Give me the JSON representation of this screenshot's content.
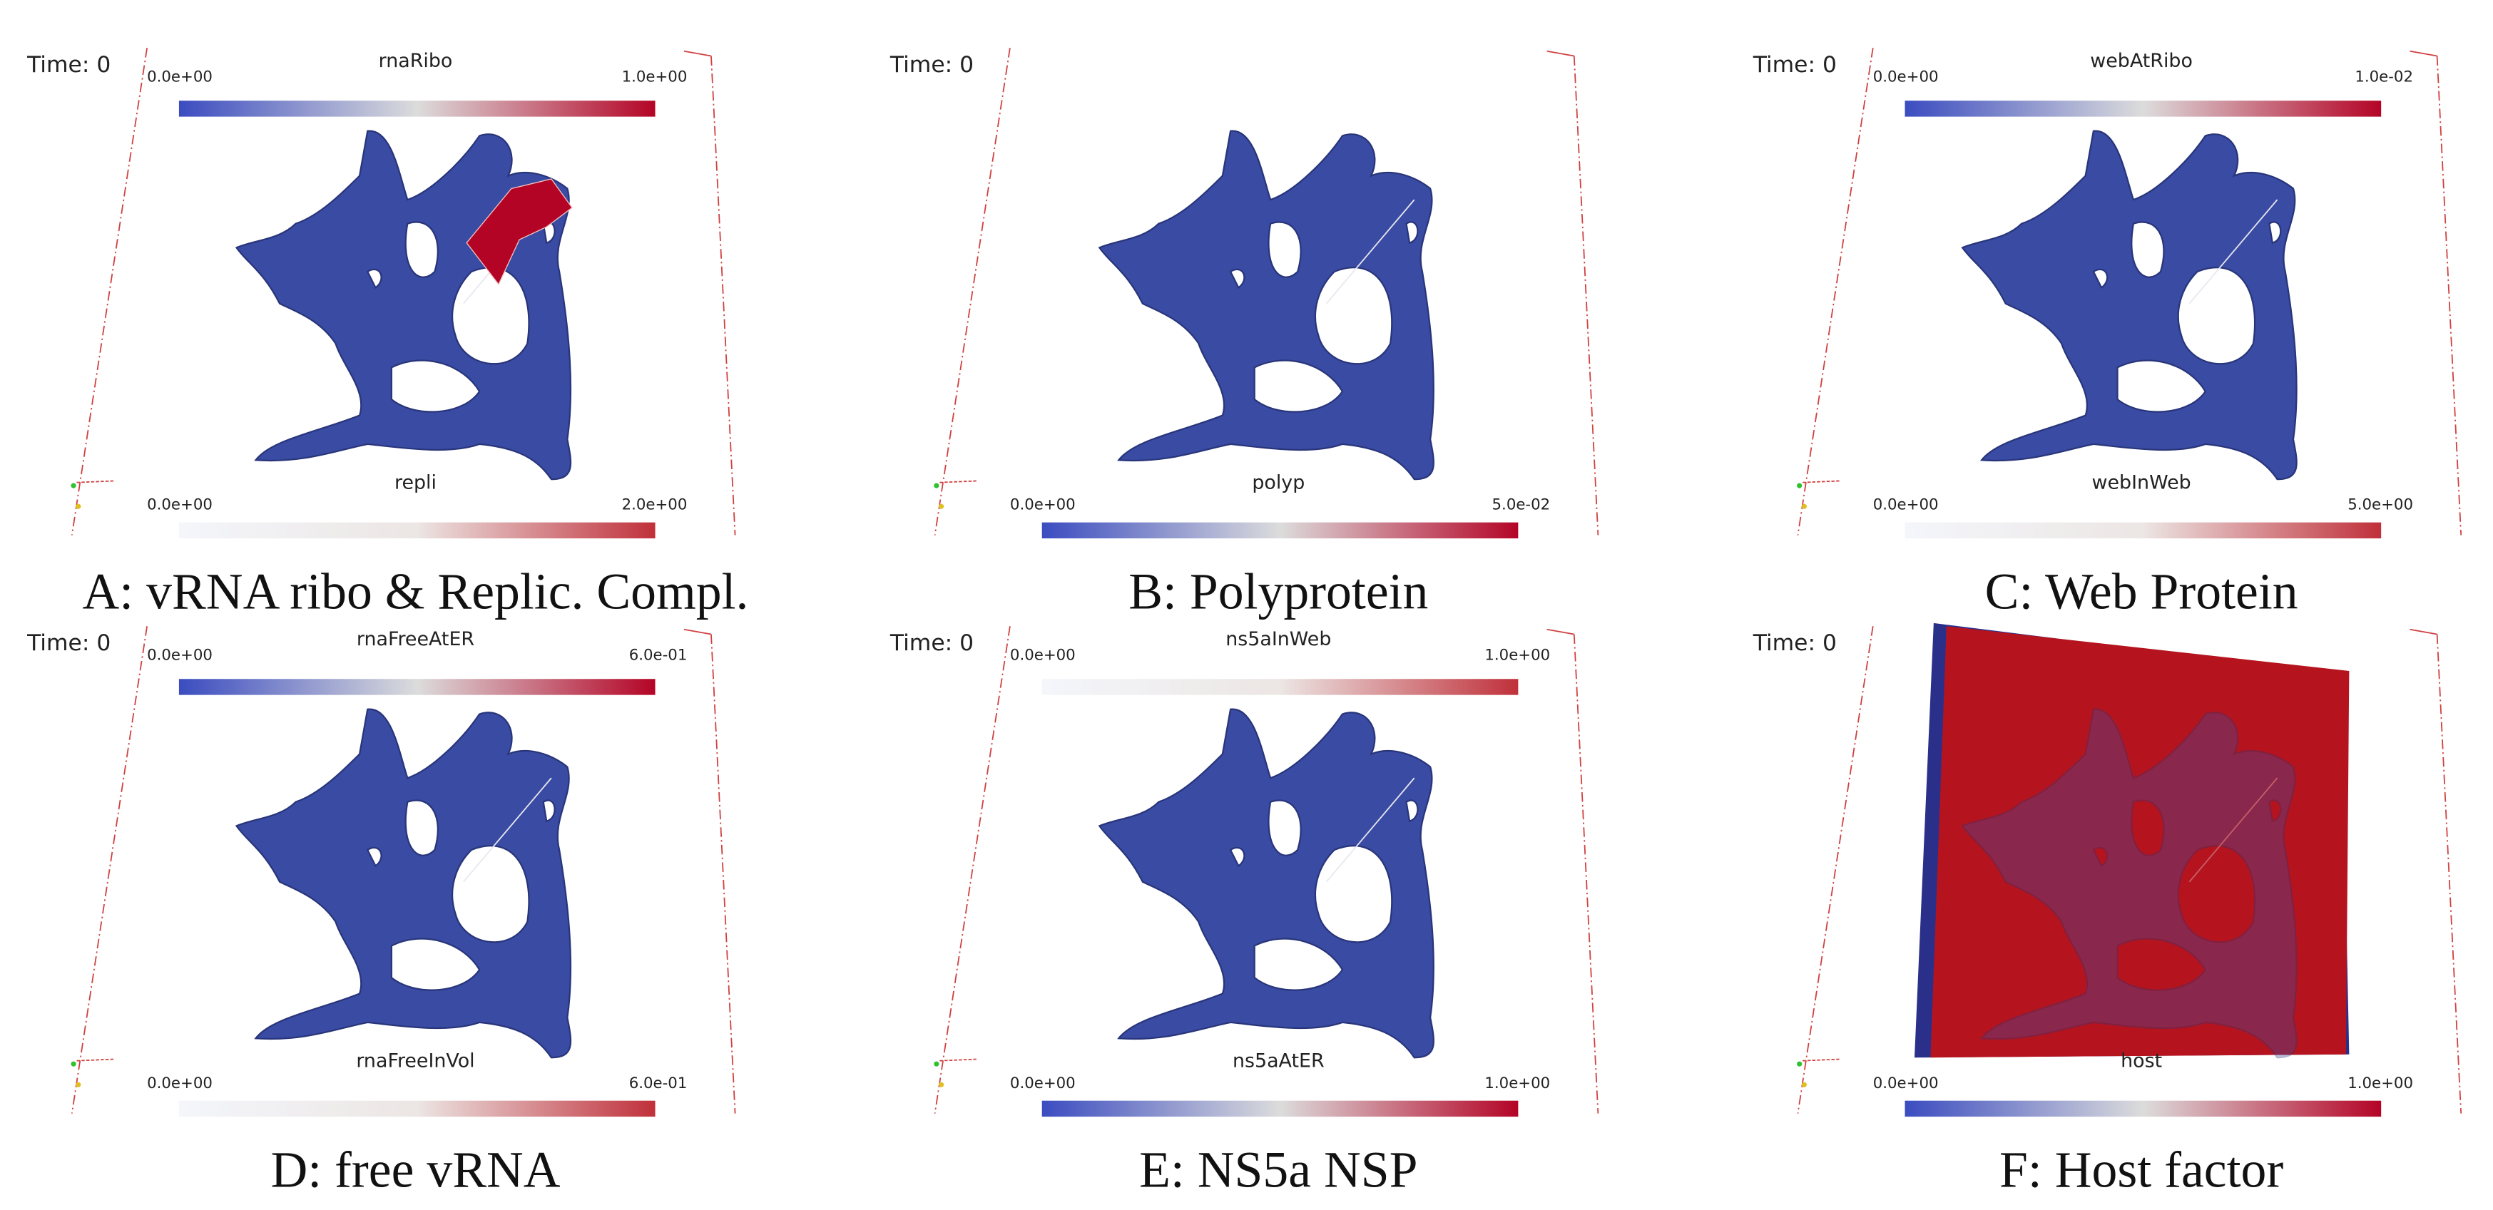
{
  "panels": [
    {
      "time_label": "Time: 0",
      "top_bar": {
        "title": "rnaRibo",
        "min": "0.0e+00",
        "max": "1.0e+00"
      },
      "bottom_bar": {
        "title": "repli",
        "min": "0.0e+00",
        "max": "2.0e+00"
      },
      "caption": "A: vRNA ribo & Replic. Compl."
    },
    {
      "time_label": "Time: 0",
      "bottom_bar": {
        "title": "polyp",
        "min": "0.0e+00",
        "max": "5.0e-02"
      },
      "caption": "B: Polyprotein"
    },
    {
      "time_label": "Time: 0",
      "top_bar": {
        "title": "webAtRibo",
        "min": "0.0e+00",
        "max": "1.0e-02"
      },
      "bottom_bar": {
        "title": "webInWeb",
        "min": "0.0e+00",
        "max": "5.0e+00"
      },
      "caption": "C: Web Protein"
    },
    {
      "time_label": "Time: 0",
      "top_bar": {
        "title": "rnaFreeAtER",
        "min": "0.0e+00",
        "max": "6.0e-01"
      },
      "bottom_bar": {
        "title": "rnaFreeInVol",
        "min": "0.0e+00",
        "max": "6.0e-01"
      },
      "caption": "D: free vRNA"
    },
    {
      "time_label": "Time: 0",
      "top_bar": {
        "title": "ns5aInWeb",
        "min": "0.0e+00",
        "max": "1.0e+00"
      },
      "bottom_bar": {
        "title": "ns5aAtER",
        "min": "0.0e+00",
        "max": "1.0e+00"
      },
      "caption": "E: NS5a NSP"
    },
    {
      "time_label": "Time: 0",
      "bottom_bar": {
        "title": "host",
        "min": "0.0e+00",
        "max": "1.0e+00"
      },
      "caption": "F: Host factor"
    }
  ]
}
